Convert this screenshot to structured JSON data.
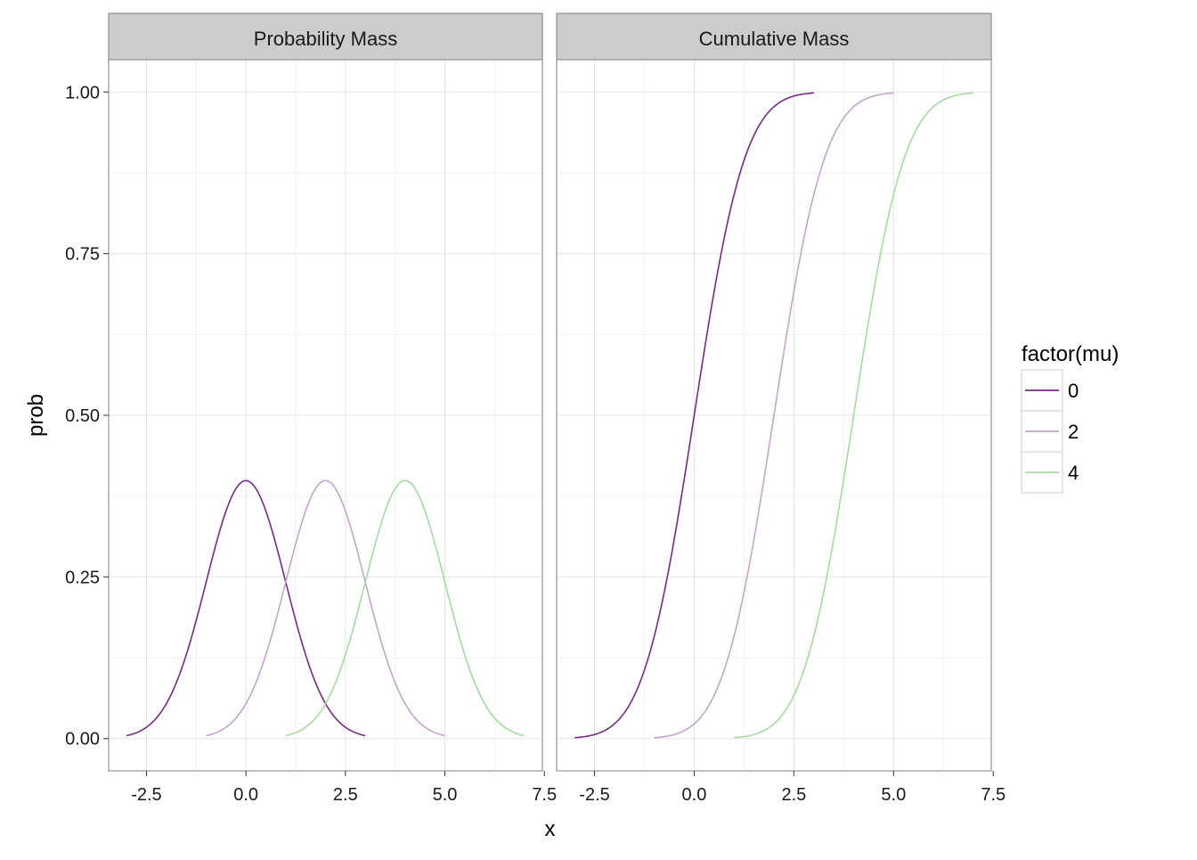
{
  "chart_data": {
    "type": "line",
    "facets": [
      {
        "id": "pmf",
        "title": "Probability Mass",
        "kind": "density"
      },
      {
        "id": "cdf",
        "title": "Cumulative Mass",
        "kind": "cumulative"
      }
    ],
    "xlabel": "x",
    "ylabel": "prob",
    "xlim": [
      -3.45,
      7.45
    ],
    "ylim": [
      -0.05,
      1.05
    ],
    "x_ticks": [
      "-2.5",
      "0.0",
      "2.5",
      "5.0",
      "7.5"
    ],
    "x_tick_values": [
      -2.5,
      0,
      2.5,
      5,
      7.5
    ],
    "y_ticks": [
      "0.00",
      "0.25",
      "0.50",
      "0.75",
      "1.00"
    ],
    "y_tick_values": [
      0,
      0.25,
      0.5,
      0.75,
      1
    ],
    "grid": true,
    "legend": {
      "title": "factor(mu)",
      "position": "right"
    },
    "series": [
      {
        "name": "0",
        "mu": 0,
        "sd": 1,
        "x_range": [
          -3,
          3
        ],
        "color": "#762a83"
      },
      {
        "name": "2",
        "mu": 2,
        "sd": 1,
        "x_range": [
          -1,
          5
        ],
        "color": "#c2a5cf"
      },
      {
        "name": "4",
        "mu": 4,
        "sd": 1,
        "x_range": [
          1,
          7
        ],
        "color": "#a6dba0"
      }
    ],
    "sampled_points": {
      "density_mu0": [
        [
          -3,
          0.0044
        ],
        [
          -2,
          0.054
        ],
        [
          -1,
          0.242
        ],
        [
          0,
          0.399
        ],
        [
          1,
          0.242
        ],
        [
          2,
          0.054
        ],
        [
          3,
          0.0044
        ]
      ],
      "cumulative_mu0": [
        [
          -3,
          0.001
        ],
        [
          -2,
          0.023
        ],
        [
          -1,
          0.159
        ],
        [
          0,
          0.5
        ],
        [
          1,
          0.841
        ],
        [
          2,
          0.977
        ],
        [
          3,
          0.999
        ]
      ]
    }
  },
  "colors": {
    "panel_border": "#7f7f7f",
    "strip_fill": "#cccccc",
    "grid_major": "#e5e5e5",
    "grid_minor": "#f2f2f2"
  }
}
